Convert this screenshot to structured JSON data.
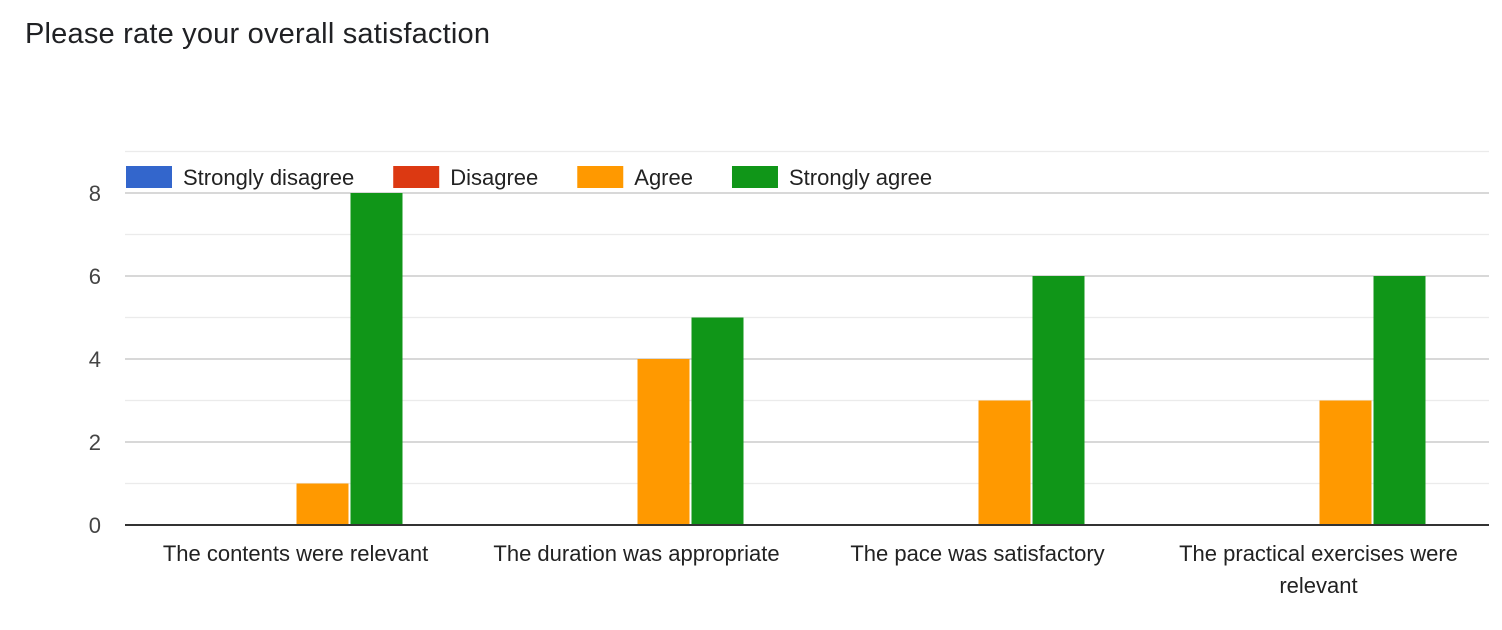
{
  "chart_data": {
    "type": "bar",
    "title": "Please rate your overall satisfaction",
    "categories": [
      "The contents were relevant",
      "The duration was appropriate",
      "The pace was satisfactory",
      "The practical exercises were relevant"
    ],
    "series": [
      {
        "name": "Strongly disagree",
        "color": "#3366cc",
        "values": [
          0,
          0,
          0,
          0
        ]
      },
      {
        "name": "Disagree",
        "color": "#dc3912",
        "values": [
          0,
          0,
          0,
          0
        ]
      },
      {
        "name": "Agree",
        "color": "#ff9900",
        "values": [
          1,
          4,
          3,
          3
        ]
      },
      {
        "name": "Strongly agree",
        "color": "#109618",
        "values": [
          8,
          5,
          6,
          6
        ]
      }
    ],
    "ylim": [
      0,
      9
    ],
    "yticks": [
      0,
      2,
      4,
      6,
      8
    ],
    "xlabel": "",
    "ylabel": "",
    "grid": true,
    "legend": "top-left"
  }
}
